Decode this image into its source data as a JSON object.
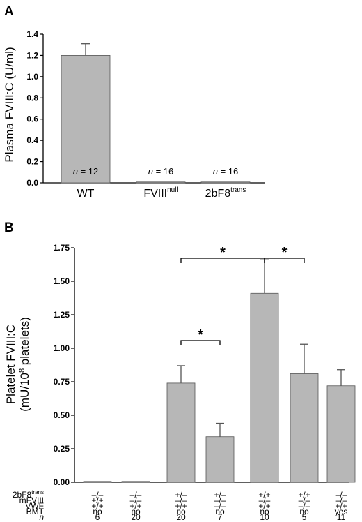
{
  "chart_data": [
    {
      "panel": "A",
      "type": "bar",
      "ylabel": "Plasma FVIII:C (U/ml)",
      "ylim": [
        0,
        1.4
      ],
      "yticks": [
        "0.0",
        "0.2",
        "0.4",
        "0.6",
        "0.8",
        "1.0",
        "1.2",
        "1.4"
      ],
      "bar_color": "#b7b7b7",
      "categories": [
        {
          "base": "WT",
          "sup": ""
        },
        {
          "base": "FVIII",
          "sup": "null"
        },
        {
          "base": "2bF8",
          "sup": "trans"
        }
      ],
      "values": [
        1.2,
        0.0,
        0.0
      ],
      "errors": [
        0.11,
        0.0,
        0.0
      ],
      "n_labels": [
        {
          "italic": "n",
          "rest": " = 12"
        },
        {
          "italic": "n",
          "rest": " = 16"
        },
        {
          "italic": "n",
          "rest": " = 16"
        }
      ]
    },
    {
      "panel": "B",
      "type": "bar",
      "ylabel_line1": "Platelet FVIII:C",
      "ylabel_line2": {
        "pre": "(mU/10",
        "sup": "8",
        "post": " platelets)"
      },
      "ylim": [
        0,
        1.75
      ],
      "yticks": [
        "0.00",
        "0.25",
        "0.50",
        "0.75",
        "1.00",
        "1.25",
        "1.50",
        "1.75"
      ],
      "bar_color": "#b7b7b7",
      "values": [
        0.0,
        0.0,
        0.74,
        0.34,
        1.41,
        0.81,
        0.72
      ],
      "errors": [
        0.0,
        0.0,
        0.13,
        0.1,
        0.25,
        0.22,
        0.12
      ],
      "significance": [
        {
          "from": 2,
          "to": 4,
          "label": "*"
        },
        {
          "from": 4,
          "to": 5,
          "label": "*"
        },
        {
          "from": 2,
          "to": 3,
          "label": "*"
        }
      ],
      "table": [
        {
          "label": {
            "base": "2bF8",
            "sup": "trans",
            "italic": false
          },
          "values": [
            "–/–",
            "–/–",
            "+/–",
            "+/–",
            "+/+",
            "+/+",
            "–/–"
          ]
        },
        {
          "label": {
            "base": "mFVIII",
            "sup": "",
            "italic": false
          },
          "values": [
            "+/+",
            "–/–",
            "–/–",
            "–/–",
            "–/–",
            "–/–",
            "–/–"
          ]
        },
        {
          "label": {
            "base": "VWF",
            "sup": "",
            "italic": false
          },
          "values": [
            "+/+",
            "+/+",
            "+/+",
            "–/–",
            "+/+",
            "–/–",
            "+/+"
          ]
        },
        {
          "label": {
            "base": "BMT",
            "sup": "",
            "italic": false
          },
          "values": [
            "no",
            "no",
            "no",
            "no",
            "no",
            "no",
            "yes"
          ]
        },
        {
          "label": {
            "base": "n",
            "sup": "",
            "italic": true
          },
          "values": [
            "6",
            "20",
            "20",
            "7",
            "10",
            "5",
            "11"
          ]
        }
      ]
    }
  ]
}
